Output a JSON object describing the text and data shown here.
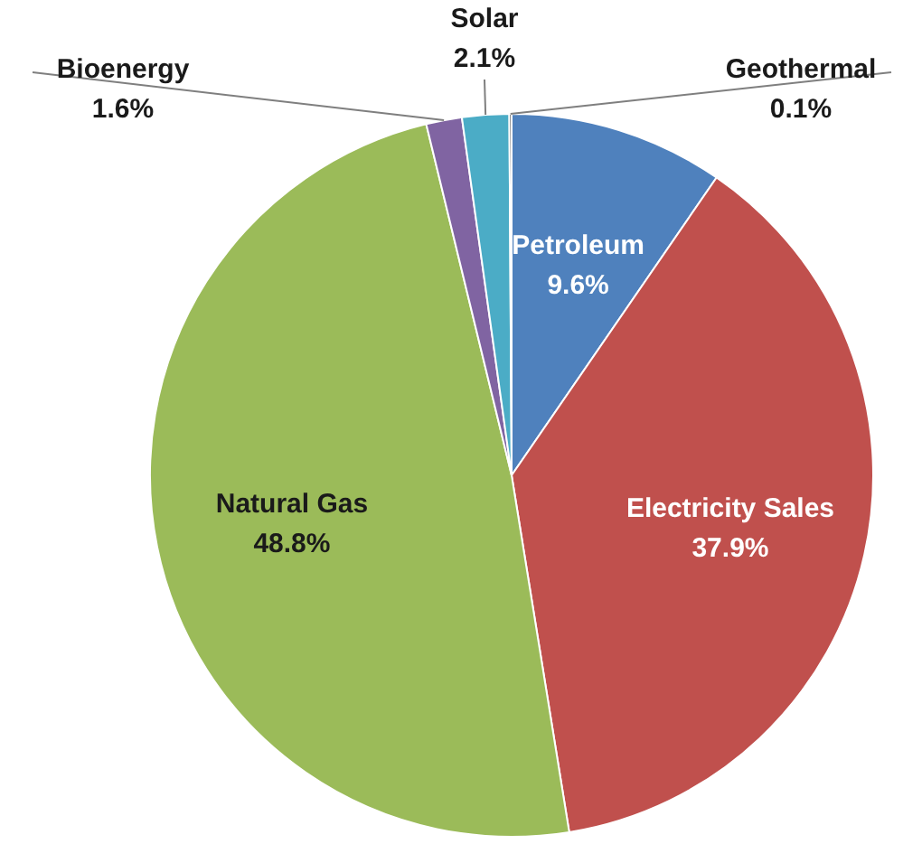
{
  "chart_data": {
    "type": "pie",
    "categories": [
      "Petroleum",
      "Electricity Sales",
      "Natural Gas",
      "Bioenergy",
      "Solar",
      "Geothermal"
    ],
    "values": [
      9.6,
      37.9,
      48.8,
      1.6,
      2.1,
      0.1
    ],
    "colors": [
      "#4f81bd",
      "#c0504d",
      "#9bbb59",
      "#8064a2",
      "#4bacc6",
      "#1f1f1f"
    ],
    "value_labels": [
      "9.6%",
      "37.9%",
      "48.8%",
      "1.6%",
      "2.1%",
      "0.1%"
    ]
  }
}
